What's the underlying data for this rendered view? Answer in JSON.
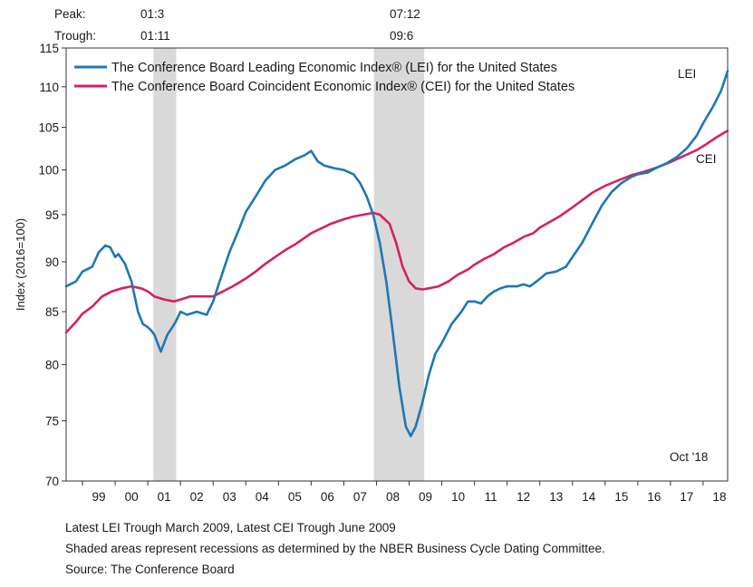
{
  "chart_data": {
    "type": "line",
    "title": "",
    "xlabel": "",
    "ylabel": "Index (2016=100)",
    "ylim": [
      70,
      115
    ],
    "yscale": "log",
    "yticks": [
      70,
      75,
      80,
      85,
      90,
      95,
      100,
      105,
      110,
      115
    ],
    "xlim": [
      1998.5,
      2018.75
    ],
    "xticks": [
      {
        "pos": 1999.5,
        "label": "99"
      },
      {
        "pos": 2000.5,
        "label": "00"
      },
      {
        "pos": 2001.5,
        "label": "01"
      },
      {
        "pos": 2002.5,
        "label": "02"
      },
      {
        "pos": 2003.5,
        "label": "03"
      },
      {
        "pos": 2004.5,
        "label": "04"
      },
      {
        "pos": 2005.5,
        "label": "05"
      },
      {
        "pos": 2006.5,
        "label": "06"
      },
      {
        "pos": 2007.5,
        "label": "07"
      },
      {
        "pos": 2008.5,
        "label": "08"
      },
      {
        "pos": 2009.5,
        "label": "09"
      },
      {
        "pos": 2010.5,
        "label": "10"
      },
      {
        "pos": 2011.5,
        "label": "11"
      },
      {
        "pos": 2012.5,
        "label": "12"
      },
      {
        "pos": 2013.5,
        "label": "13"
      },
      {
        "pos": 2014.5,
        "label": "14"
      },
      {
        "pos": 2015.5,
        "label": "15"
      },
      {
        "pos": 2016.5,
        "label": "16"
      },
      {
        "pos": 2017.5,
        "label": "17"
      },
      {
        "pos": 2018.5,
        "label": "18"
      }
    ],
    "recessions": [
      {
        "peak": "01:3",
        "trough": "01:11",
        "start": 2001.17,
        "end": 2001.87
      },
      {
        "peak": "07:12",
        "trough": "09:6",
        "start": 2007.92,
        "end": 2009.46
      }
    ],
    "series": [
      {
        "name": "The Conference Board Leading Economic Index® (LEI) for the United States",
        "label": "LEI",
        "color": "#1f77b4",
        "x": [
          1998.5,
          1998.8,
          1999.0,
          1999.3,
          1999.5,
          1999.7,
          1999.85,
          2000.0,
          2000.1,
          2000.3,
          2000.5,
          2000.7,
          2000.85,
          2001.0,
          2001.1,
          2001.2,
          2001.4,
          2001.6,
          2001.75,
          2001.85,
          2002.0,
          2002.2,
          2002.5,
          2002.8,
          2003.0,
          2003.15,
          2003.3,
          2003.5,
          2003.8,
          2004.0,
          2004.3,
          2004.6,
          2004.9,
          2005.2,
          2005.5,
          2005.8,
          2006.0,
          2006.2,
          2006.4,
          2006.7,
          2007.0,
          2007.3,
          2007.5,
          2007.7,
          2007.9,
          2008.1,
          2008.3,
          2008.5,
          2008.7,
          2008.9,
          2009.05,
          2009.2,
          2009.4,
          2009.6,
          2009.8,
          2010.0,
          2010.3,
          2010.6,
          2010.8,
          2011.0,
          2011.2,
          2011.4,
          2011.6,
          2011.8,
          2012.0,
          2012.3,
          2012.5,
          2012.7,
          2012.9,
          2013.2,
          2013.5,
          2013.8,
          2014.0,
          2014.3,
          2014.6,
          2014.9,
          2015.2,
          2015.5,
          2015.8,
          2016.0,
          2016.3,
          2016.6,
          2016.9,
          2017.2,
          2017.5,
          2017.8,
          2018.0,
          2018.3,
          2018.55,
          2018.75
        ],
        "values": [
          87.5,
          88.0,
          89.0,
          89.5,
          91.0,
          91.7,
          91.5,
          90.5,
          90.8,
          89.8,
          88.0,
          85.0,
          83.8,
          83.5,
          83.2,
          82.8,
          81.2,
          82.8,
          83.5,
          84.0,
          85.0,
          84.7,
          85.0,
          84.7,
          86.0,
          87.5,
          89.0,
          91.0,
          93.5,
          95.3,
          97.0,
          98.8,
          100.0,
          100.5,
          101.2,
          101.7,
          102.2,
          101.0,
          100.5,
          100.2,
          100.0,
          99.5,
          98.5,
          97.0,
          95.0,
          92.0,
          88.0,
          83.0,
          78.0,
          74.5,
          73.7,
          74.5,
          76.5,
          79.0,
          81.0,
          82.0,
          83.8,
          85.0,
          86.0,
          86.0,
          85.8,
          86.5,
          87.0,
          87.3,
          87.5,
          87.5,
          87.7,
          87.5,
          88.0,
          88.8,
          89.0,
          89.5,
          90.5,
          92.0,
          94.0,
          96.0,
          97.5,
          98.5,
          99.2,
          99.5,
          99.7,
          100.3,
          100.8,
          101.5,
          102.5,
          104.0,
          105.5,
          107.5,
          109.5,
          112.0
        ]
      },
      {
        "name": "The Conference Board Coincident Economic Index® (CEI) for the United States",
        "label": "CEI",
        "color": "#d6235a",
        "x": [
          1998.5,
          1998.8,
          1999.0,
          1999.3,
          1999.6,
          1999.9,
          2000.2,
          2000.5,
          2000.8,
          2001.0,
          2001.2,
          2001.5,
          2001.8,
          2002.0,
          2002.3,
          2002.6,
          2003.0,
          2003.3,
          2003.6,
          2004.0,
          2004.3,
          2004.6,
          2004.9,
          2005.2,
          2005.5,
          2005.8,
          2006.0,
          2006.3,
          2006.6,
          2007.0,
          2007.3,
          2007.6,
          2007.9,
          2008.1,
          2008.4,
          2008.6,
          2008.8,
          2009.0,
          2009.2,
          2009.4,
          2009.6,
          2009.9,
          2010.2,
          2010.5,
          2010.8,
          2011.0,
          2011.3,
          2011.6,
          2011.9,
          2012.2,
          2012.5,
          2012.8,
          2013.0,
          2013.3,
          2013.6,
          2014.0,
          2014.3,
          2014.6,
          2015.0,
          2015.4,
          2015.8,
          2016.2,
          2016.6,
          2017.0,
          2017.4,
          2017.8,
          2018.1,
          2018.4,
          2018.75
        ],
        "values": [
          83.0,
          84.0,
          84.8,
          85.5,
          86.5,
          87.0,
          87.3,
          87.5,
          87.3,
          87.0,
          86.5,
          86.2,
          86.0,
          86.2,
          86.5,
          86.5,
          86.5,
          87.0,
          87.5,
          88.3,
          89.0,
          89.8,
          90.5,
          91.2,
          91.8,
          92.5,
          93.0,
          93.5,
          94.0,
          94.5,
          94.8,
          95.0,
          95.2,
          95.0,
          94.0,
          92.0,
          89.5,
          88.0,
          87.3,
          87.2,
          87.3,
          87.5,
          88.0,
          88.7,
          89.2,
          89.7,
          90.3,
          90.8,
          91.5,
          92.0,
          92.6,
          93.0,
          93.6,
          94.2,
          94.8,
          95.8,
          96.6,
          97.4,
          98.2,
          98.8,
          99.4,
          99.8,
          100.3,
          100.9,
          101.6,
          102.3,
          103.0,
          103.8,
          104.6
        ]
      }
    ]
  },
  "header": {
    "peak_label": "Peak:",
    "trough_label": "Trough:",
    "recession1_peak": "01:3",
    "recession1_trough": "01:11",
    "recession2_peak": "07:12",
    "recession2_trough": "09:6"
  },
  "legend": {
    "lei": "The Conference Board Leading Economic Index® (LEI) for the United States",
    "cei": "The Conference Board Coincident Economic Index® (CEI) for the United States"
  },
  "labels": {
    "lei": "LEI",
    "cei": "CEI",
    "latest_date": "Oct '18"
  },
  "footer": {
    "line1": "Latest LEI Trough March 2009, Latest CEI Trough June 2009",
    "line2": "Shaded areas represent recessions as determined by the NBER Business Cycle Dating Committee.",
    "line3": "Source: The Conference Board"
  },
  "colors": {
    "lei": "#1f77b4",
    "cei": "#d6235a",
    "recession": "#d9d9d9"
  }
}
